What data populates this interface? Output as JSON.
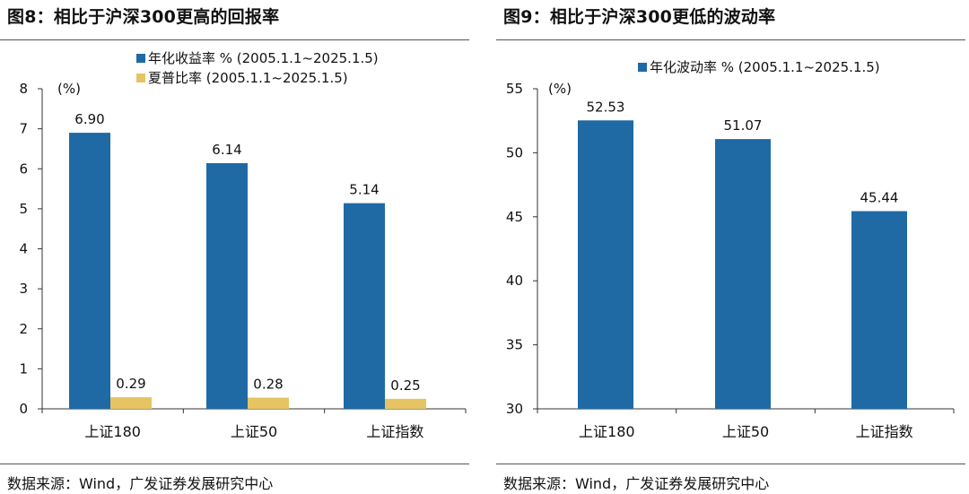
{
  "panels": [
    {
      "title": "图8：相比于沪深300更高的回报率",
      "source": "数据来源：Wind，广发证券发展研究中心"
    },
    {
      "title": "图9：相比于沪深300更低的波动率",
      "source": "数据来源：Wind，广发证券发展研究中心"
    }
  ],
  "chart_data": [
    {
      "type": "bar",
      "title": "",
      "ylabel": "(%)",
      "ylim": [
        0,
        8
      ],
      "yticks": [
        0,
        1,
        2,
        3,
        4,
        5,
        6,
        7,
        8
      ],
      "categories": [
        "上证180",
        "上证50",
        "上证指数"
      ],
      "series": [
        {
          "name": "年化收益率 % (2005.1.1~2025.1.5)",
          "color": "#1f6aa5",
          "values": [
            6.9,
            6.14,
            5.14
          ],
          "labels": [
            "6.90",
            "6.14",
            "5.14"
          ]
        },
        {
          "name": "夏普比率 (2005.1.1~2025.1.5)",
          "color": "#e6c463",
          "values": [
            0.29,
            0.28,
            0.25
          ],
          "labels": [
            "0.29",
            "0.28",
            "0.25"
          ]
        }
      ],
      "legend_position": "top-center",
      "grid": false
    },
    {
      "type": "bar",
      "title": "",
      "ylabel": "(%)",
      "ylim": [
        30,
        55
      ],
      "yticks": [
        30,
        35,
        40,
        45,
        50,
        55
      ],
      "categories": [
        "上证180",
        "上证50",
        "上证指数"
      ],
      "series": [
        {
          "name": "年化波动率 % (2005.1.1~2025.1.5)",
          "color": "#1f6aa5",
          "values": [
            52.53,
            51.07,
            45.44
          ],
          "labels": [
            "52.53",
            "51.07",
            "45.44"
          ]
        }
      ],
      "legend_position": "top-center",
      "grid": false
    }
  ]
}
